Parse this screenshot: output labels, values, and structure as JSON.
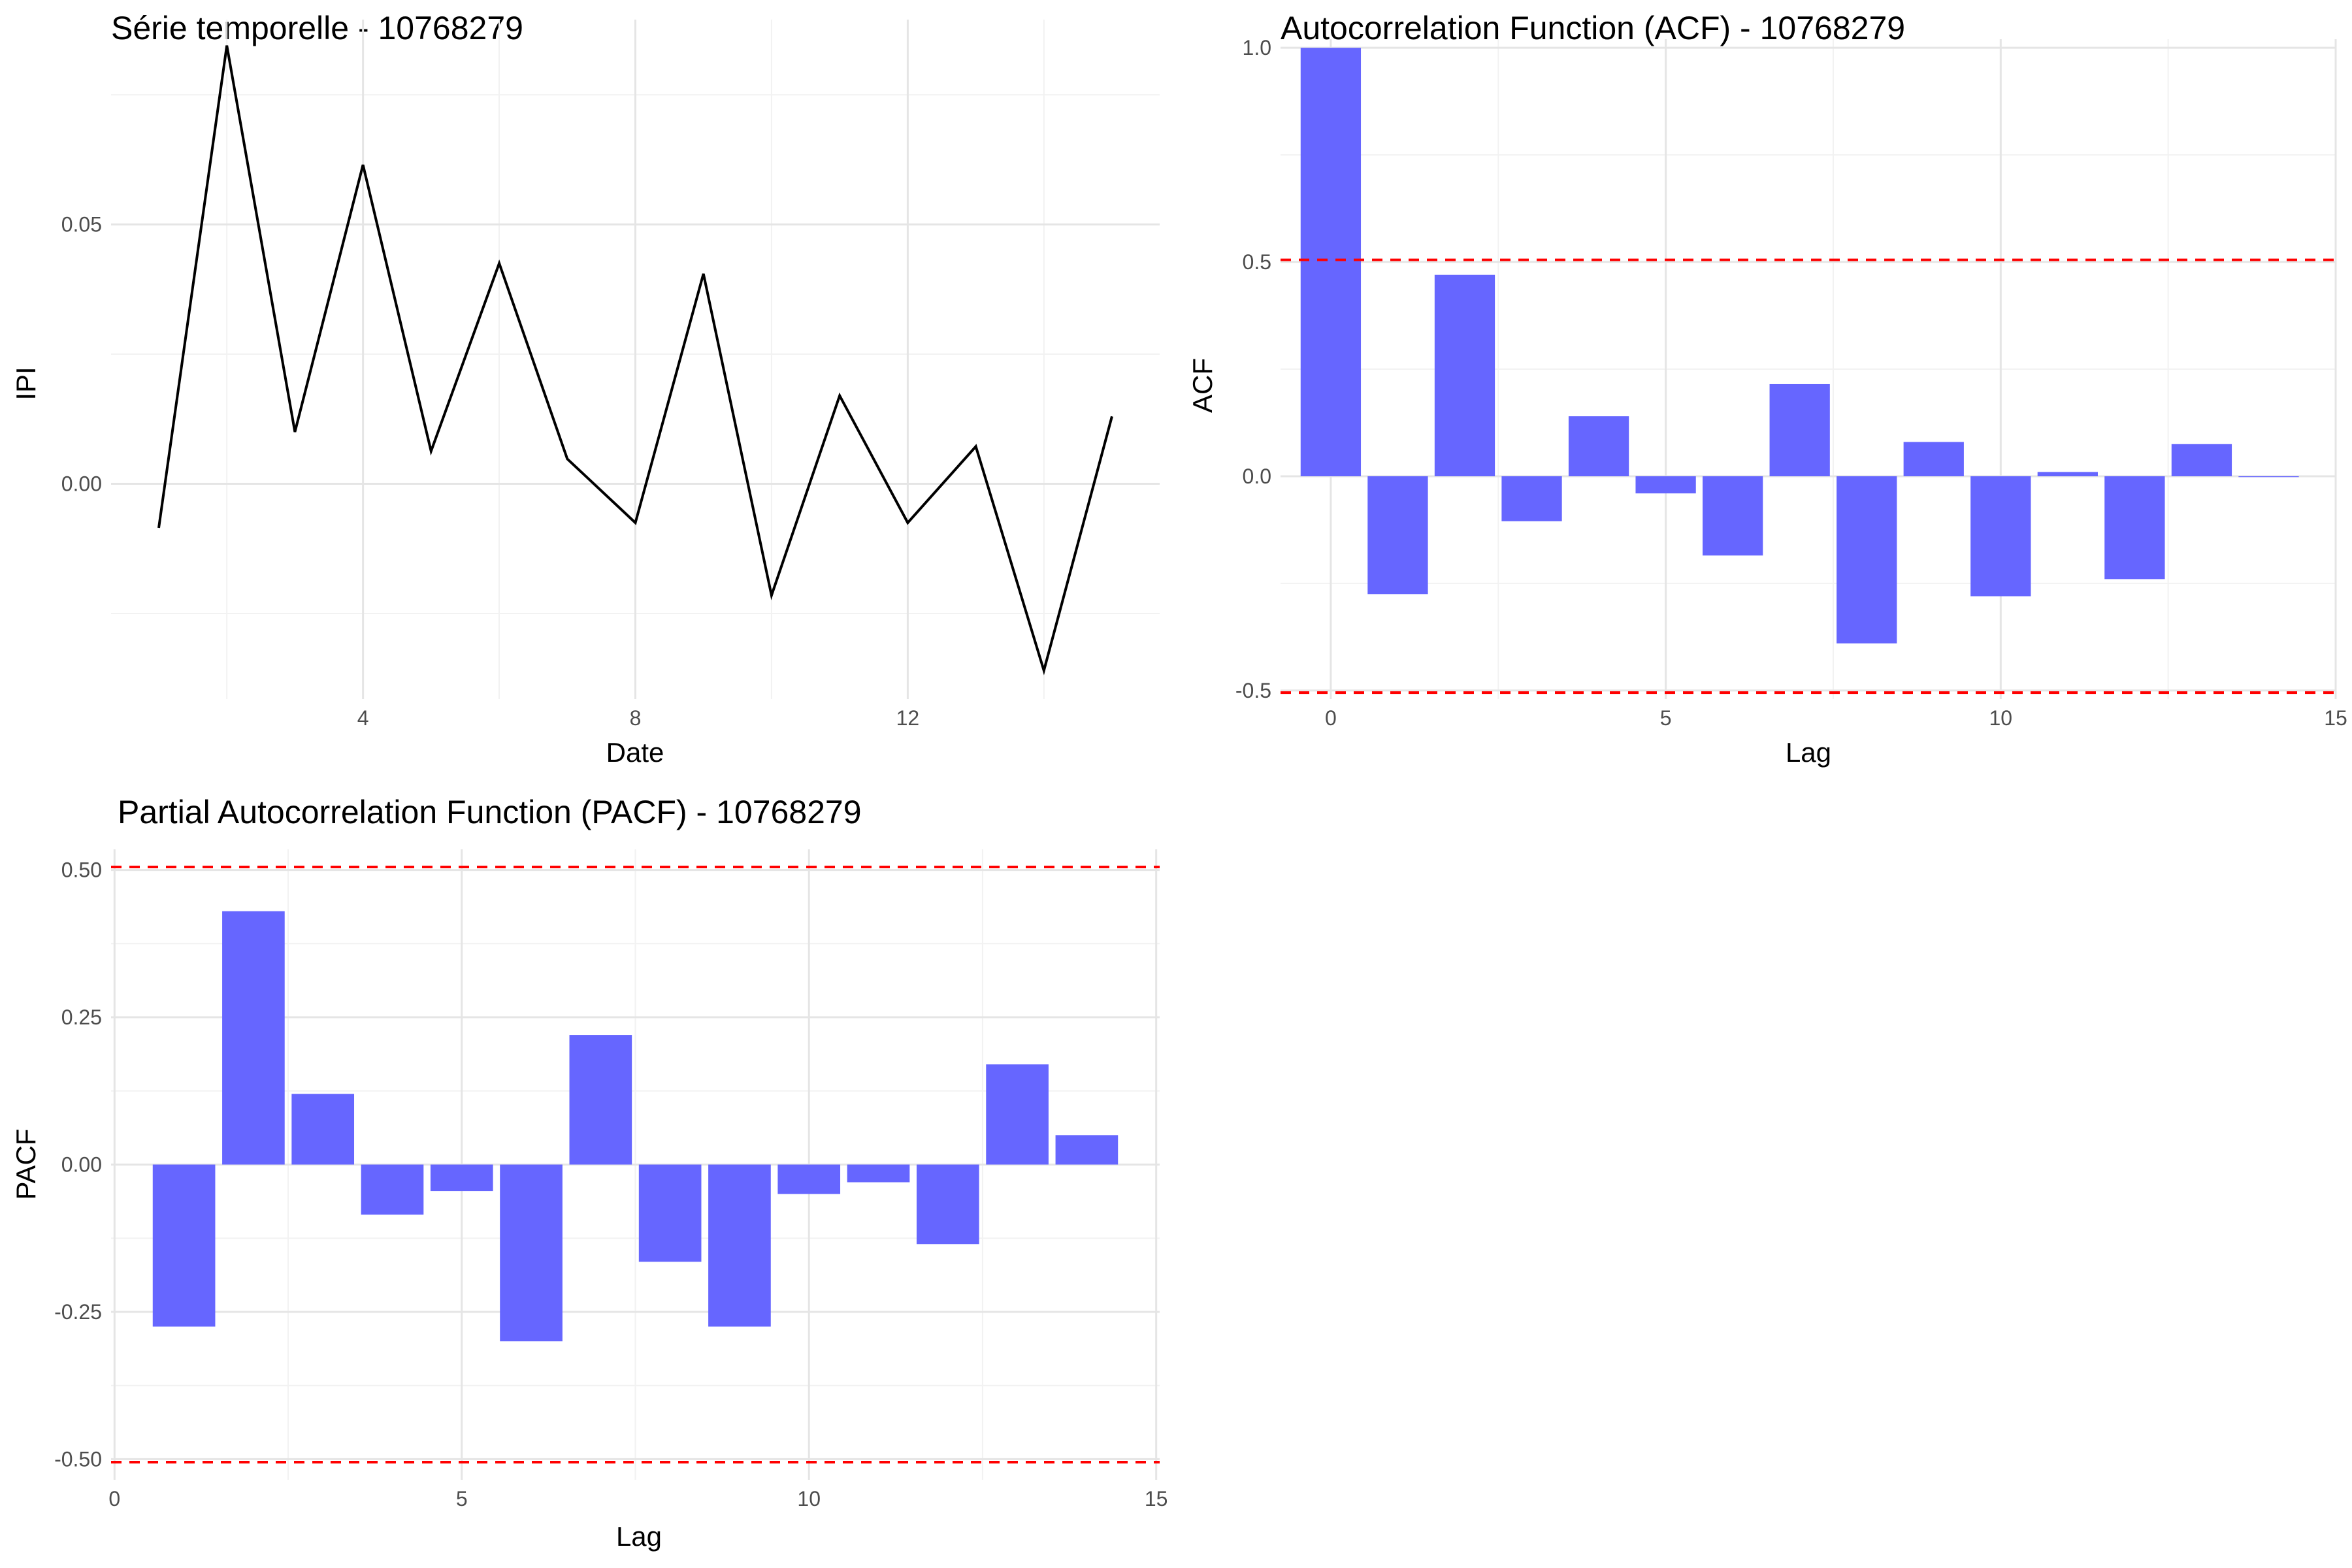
{
  "chart_data": [
    {
      "id": "ts",
      "type": "line",
      "title": "Série temporelle - 10768279",
      "xlabel": "Date",
      "ylabel": "IPI",
      "x": [
        1,
        2,
        3,
        4,
        5,
        6,
        7,
        8,
        9,
        10,
        11,
        12,
        13,
        14,
        15
      ],
      "values": [
        -0.0085,
        0.0845,
        0.01,
        0.0615,
        0.0063,
        0.0425,
        0.0048,
        -0.0075,
        0.0405,
        -0.0215,
        0.017,
        -0.0075,
        0.0072,
        -0.036,
        0.013
      ],
      "xlim": [
        0.3,
        15.7
      ],
      "ylim": [
        -0.0415,
        0.0895
      ],
      "xticks": [
        4,
        8,
        12
      ],
      "xtick_labels": [
        "4",
        "8",
        "12"
      ],
      "yticks": [
        0,
        0.05
      ],
      "ytick_labels": [
        "0.00",
        "0.05"
      ],
      "grid": true,
      "color": "#000000"
    },
    {
      "id": "acf",
      "type": "bar",
      "title": "Autocorrelation Function (ACF) - 10768279",
      "xlabel": "Lag",
      "ylabel": "ACF",
      "x": [
        0,
        1,
        2,
        3,
        4,
        5,
        6,
        7,
        8,
        9,
        10,
        11,
        12,
        13,
        14
      ],
      "values": [
        1.0,
        -0.275,
        0.47,
        -0.105,
        0.14,
        -0.04,
        -0.185,
        0.215,
        -0.39,
        0.08,
        -0.28,
        0.01,
        -0.24,
        0.075,
        -0.002
      ],
      "xlim": [
        -0.75,
        15.0
      ],
      "ylim": [
        -0.52,
        1.02
      ],
      "xticks": [
        0,
        5,
        10,
        15
      ],
      "xtick_labels": [
        "0",
        "5",
        "10",
        "15"
      ],
      "yticks": [
        -0.5,
        0,
        0.5,
        1
      ],
      "ytick_labels": [
        "-0.5",
        "0.0",
        "0.5",
        "1.0"
      ],
      "conf_bound": 0.505,
      "grid": true,
      "bar_color": "#6666ff",
      "ref_line_color": "#ff0000"
    },
    {
      "id": "pacf",
      "type": "bar",
      "title": "Partial Autocorrelation Function (PACF) - 10768279",
      "xlabel": "Lag",
      "ylabel": "PACF",
      "x": [
        1,
        2,
        3,
        4,
        5,
        6,
        7,
        8,
        9,
        10,
        11,
        12,
        13,
        14
      ],
      "values": [
        -0.275,
        0.43,
        0.12,
        -0.085,
        -0.045,
        -0.3,
        0.22,
        -0.165,
        -0.275,
        -0.05,
        -0.03,
        -0.135,
        0.17,
        0.05
      ],
      "xlim": [
        -0.05,
        15.05
      ],
      "ylim": [
        -0.535,
        0.535
      ],
      "xticks": [
        0,
        5,
        10,
        15
      ],
      "xtick_labels": [
        "0",
        "5",
        "10",
        "15"
      ],
      "yticks": [
        -0.5,
        -0.25,
        0,
        0.25,
        0.5
      ],
      "ytick_labels": [
        "-0.50",
        "-0.25",
        "0.00",
        "0.25",
        "0.50"
      ],
      "conf_bound": 0.505,
      "grid": true,
      "bar_color": "#6666ff",
      "ref_line_color": "#ff0000"
    }
  ]
}
